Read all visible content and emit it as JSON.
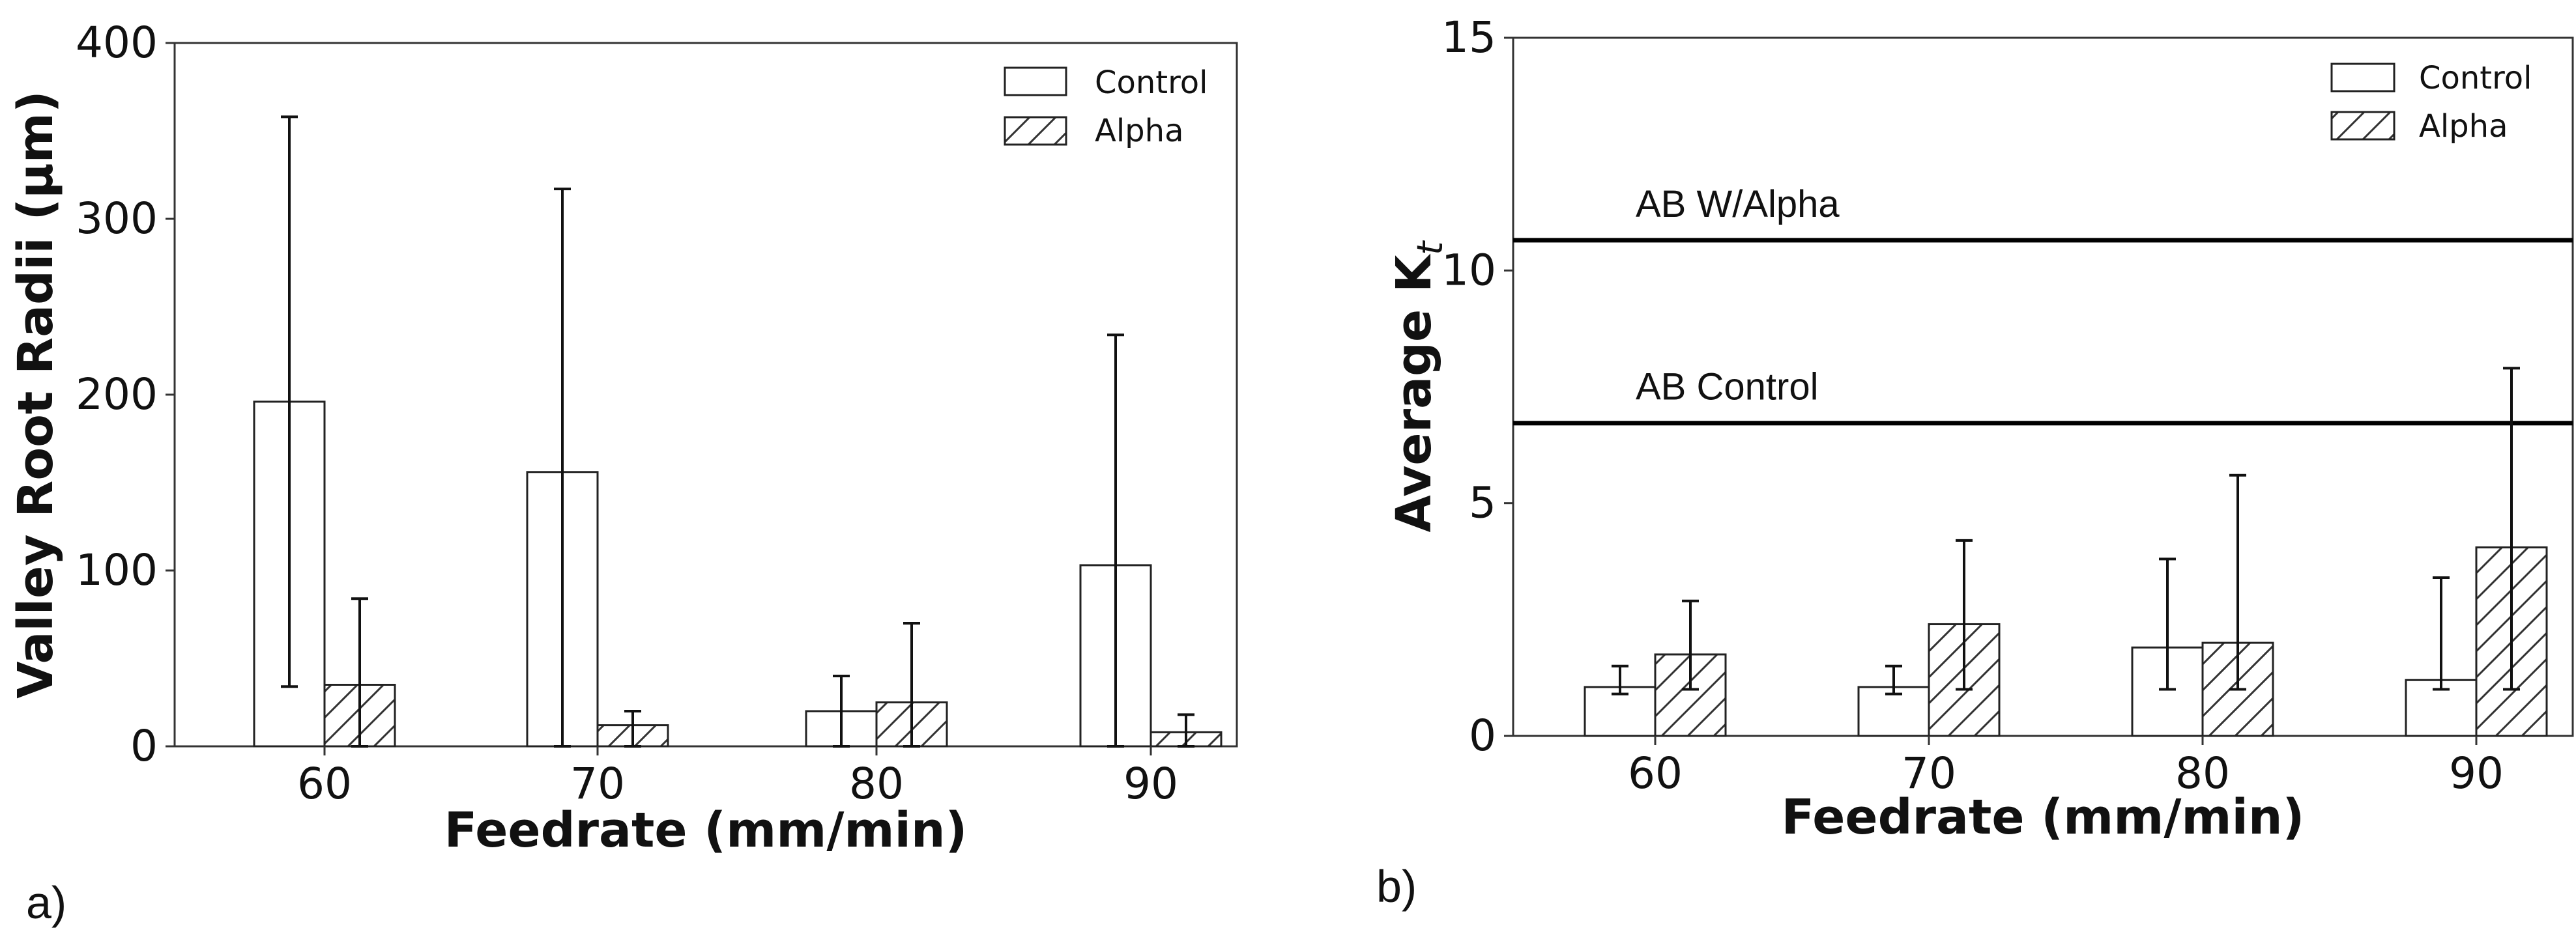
{
  "chart_data": [
    {
      "type": "bar",
      "panel_label": "a)",
      "categories": [
        "60",
        "70",
        "80",
        "90"
      ],
      "series": [
        {
          "name": "Control",
          "pattern": "none",
          "values": [
            196,
            156,
            20,
            103
          ],
          "error_low": [
            34,
            0,
            0,
            0
          ],
          "error_high": [
            358,
            317,
            40,
            234
          ]
        },
        {
          "name": "Alpha",
          "pattern": "hatch",
          "values": [
            35,
            12,
            25,
            8
          ],
          "error_low": [
            0,
            0,
            0,
            0
          ],
          "error_high": [
            84,
            20,
            70,
            18
          ]
        }
      ],
      "xlabel": "Feedrate (mm/min)",
      "ylabel": "Valley Root Radii (μm)",
      "ylim": [
        0,
        400
      ],
      "yticks": [
        "0",
        "100",
        "200",
        "300",
        "400"
      ],
      "legend": [
        "Control",
        "Alpha"
      ],
      "legend_position": "top-right",
      "reference_lines": []
    },
    {
      "type": "bar",
      "panel_label": "b)",
      "categories": [
        "60",
        "70",
        "80",
        "90"
      ],
      "series": [
        {
          "name": "Control",
          "pattern": "none",
          "values": [
            1.05,
            1.05,
            1.9,
            1.2
          ],
          "error_low": [
            0.9,
            0.9,
            1.0,
            1.0
          ],
          "error_high": [
            1.5,
            1.5,
            3.8,
            3.4
          ]
        },
        {
          "name": "Alpha",
          "pattern": "hatch",
          "values": [
            1.75,
            2.4,
            2.0,
            4.05
          ],
          "error_low": [
            1.0,
            1.0,
            1.0,
            1.0
          ],
          "error_high": [
            2.9,
            4.2,
            5.6,
            7.9
          ]
        }
      ],
      "xlabel": "Feedrate (mm/min)",
      "ylabel": "Average K",
      "ylabel_subscript": "t",
      "ylim": [
        0,
        15
      ],
      "yticks": [
        "0",
        "5",
        "10",
        "15"
      ],
      "legend": [
        "Control",
        "Alpha"
      ],
      "legend_position": "top-right",
      "reference_lines": [
        {
          "label": "AB W/Alpha",
          "value": 10.65
        },
        {
          "label": "AB Control",
          "value": 6.72
        }
      ]
    }
  ]
}
